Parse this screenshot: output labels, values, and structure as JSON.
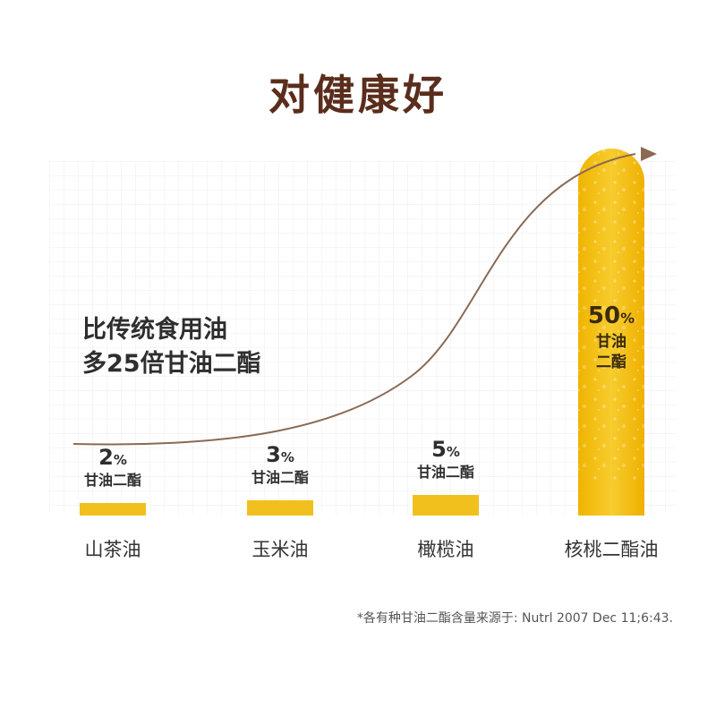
{
  "chart_data": {
    "type": "bar",
    "title": "对健康好",
    "annotation_lines": [
      "比传统食用油",
      "多25倍甘油二酯"
    ],
    "categories": [
      "山茶油",
      "玉米油",
      "橄榄油",
      "核桃二酯油"
    ],
    "values": [
      2,
      3,
      5,
      50
    ],
    "value_labels": [
      "2",
      "3",
      "5",
      "50"
    ],
    "unit": "%",
    "series_label": "甘油二酯",
    "ylim": [
      0,
      50
    ],
    "grid": true,
    "trend_arrow": true,
    "bar_color": "#f2c01c",
    "highlight_color": "#f5b800",
    "title_color": "#5a2d1c",
    "curve_color": "#8a6a55"
  },
  "footnote": "*各有种甘油二酯含量来源于: Nutrl 2007 Dec 11;6:43."
}
